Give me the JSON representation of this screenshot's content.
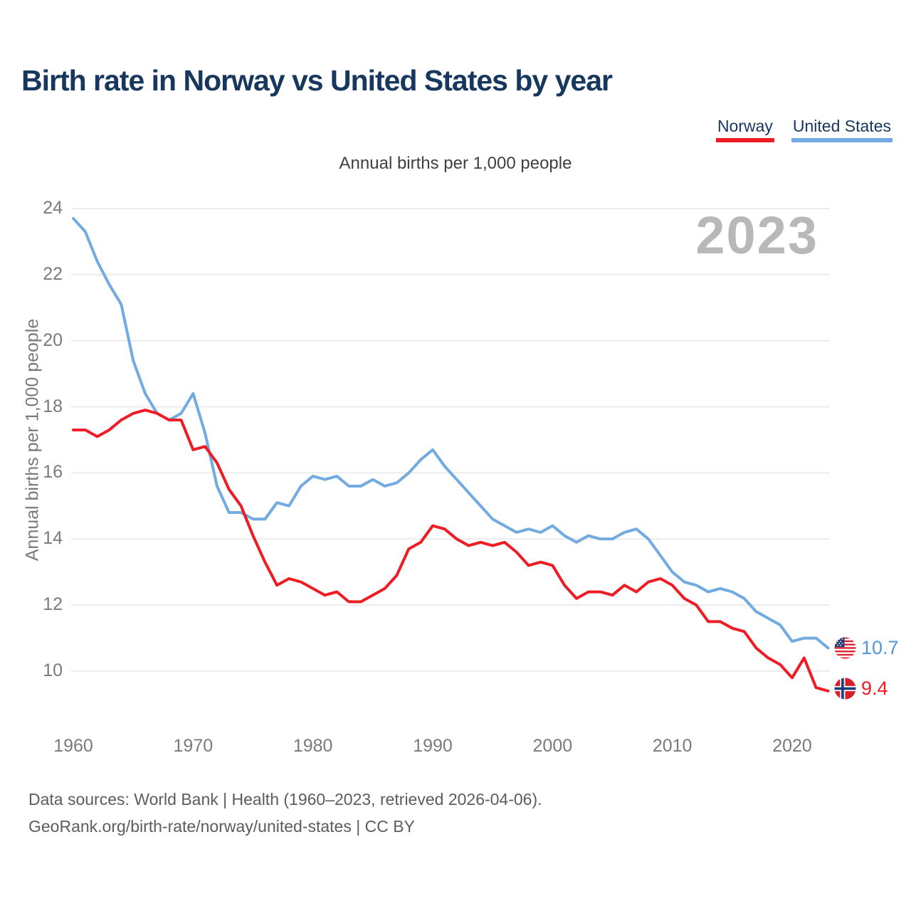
{
  "header": {
    "title": "Birth rate in Norway vs United States by year"
  },
  "legend": [
    {
      "label": "Norway",
      "color": "#ee1c24"
    },
    {
      "label": "United States",
      "color": "#72aae2"
    }
  ],
  "subtitle": "Annual births per 1,000 people",
  "watermark": "2023",
  "y_axis_title": "Annual births per 1,000 people",
  "colors": {
    "title_navy": "#17375e",
    "norway_red": "#ee1c24",
    "us_blue": "#72aae2",
    "us_value_label": "#5596d8",
    "norway_value_label": "#ee1c24",
    "gridline": "#ececec",
    "tick_label": "#7a7a7a",
    "watermark_gray": "#b8b8b8"
  },
  "chart_data": {
    "type": "line",
    "title": "Birth rate in Norway vs United States by year",
    "ylabel": "Annual births per 1,000 people",
    "xlabel": "",
    "grid": "horizontal",
    "legend_position": "top-right",
    "xlim": [
      1960,
      2023
    ],
    "ylim": [
      10,
      24
    ],
    "y_ticks": [
      24,
      22,
      20,
      18,
      16,
      14,
      12,
      10
    ],
    "x_ticks": [
      1960,
      1970,
      1980,
      1990,
      2000,
      2010,
      2020
    ],
    "x": [
      1960,
      1961,
      1962,
      1963,
      1964,
      1965,
      1966,
      1967,
      1968,
      1969,
      1970,
      1971,
      1972,
      1973,
      1974,
      1975,
      1976,
      1977,
      1978,
      1979,
      1980,
      1981,
      1982,
      1983,
      1984,
      1985,
      1986,
      1987,
      1988,
      1989,
      1990,
      1991,
      1992,
      1993,
      1994,
      1995,
      1996,
      1997,
      1998,
      1999,
      2000,
      2001,
      2002,
      2003,
      2004,
      2005,
      2006,
      2007,
      2008,
      2009,
      2010,
      2011,
      2012,
      2013,
      2014,
      2015,
      2016,
      2017,
      2018,
      2019,
      2020,
      2021,
      2022,
      2023
    ],
    "series": [
      {
        "name": "United States",
        "color": "#72aae2",
        "end_label": "10.7",
        "end_label_color": "#5596d8",
        "values": [
          23.7,
          23.3,
          22.4,
          21.7,
          21.1,
          19.4,
          18.4,
          17.8,
          17.6,
          17.8,
          18.4,
          17.2,
          15.6,
          14.8,
          14.8,
          14.6,
          14.6,
          15.1,
          15.0,
          15.6,
          15.9,
          15.8,
          15.9,
          15.6,
          15.6,
          15.8,
          15.6,
          15.7,
          16.0,
          16.4,
          16.7,
          16.2,
          15.8,
          15.4,
          15.0,
          14.6,
          14.4,
          14.2,
          14.3,
          14.2,
          14.4,
          14.1,
          13.9,
          14.1,
          14.0,
          14.0,
          14.2,
          14.3,
          14.0,
          13.5,
          13.0,
          12.7,
          12.6,
          12.4,
          12.5,
          12.4,
          12.2,
          11.8,
          11.6,
          11.4,
          10.9,
          11.0,
          11.0,
          10.7
        ]
      },
      {
        "name": "Norway",
        "color": "#ee1c24",
        "end_label": "9.4",
        "end_label_color": "#ee1c24",
        "values": [
          17.3,
          17.3,
          17.1,
          17.3,
          17.6,
          17.8,
          17.9,
          17.8,
          17.6,
          17.6,
          16.7,
          16.8,
          16.3,
          15.5,
          15.0,
          14.1,
          13.3,
          12.6,
          12.8,
          12.7,
          12.5,
          12.3,
          12.4,
          12.1,
          12.1,
          12.3,
          12.5,
          12.9,
          13.7,
          13.9,
          14.4,
          14.3,
          14.0,
          13.8,
          13.9,
          13.8,
          13.9,
          13.6,
          13.2,
          13.3,
          13.2,
          12.6,
          12.2,
          12.4,
          12.4,
          12.3,
          12.6,
          12.4,
          12.7,
          12.8,
          12.6,
          12.2,
          12.0,
          11.5,
          11.5,
          11.3,
          11.2,
          10.7,
          10.4,
          10.2,
          9.8,
          10.4,
          9.5,
          9.4
        ]
      }
    ]
  },
  "footer": {
    "line1": "Data sources: World Bank | Health (1960–2023, retrieved 2026-04-06).",
    "line2": "GeoRank.org/birth-rate/norway/united-states | CC BY"
  }
}
